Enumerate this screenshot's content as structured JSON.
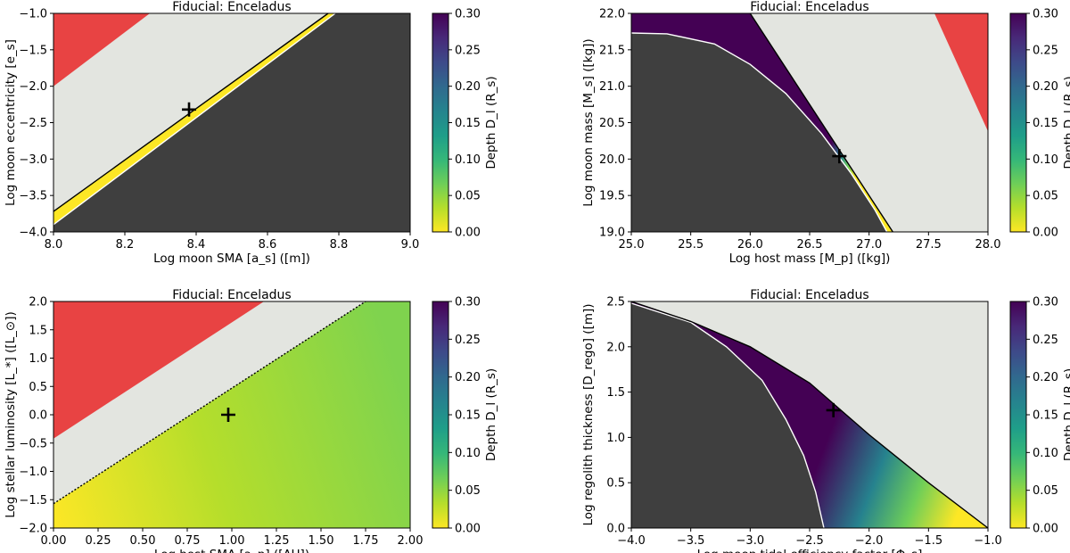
{
  "colors": {
    "dark": "#3f3f3f",
    "light": "#e3e5e0",
    "red": "#e84343",
    "viridis": [
      "#fde725",
      "#b5de2b",
      "#6ece58",
      "#35b779",
      "#1f9e89",
      "#26828e",
      "#31688e",
      "#3e4989",
      "#482878",
      "#440154"
    ]
  },
  "colorbar": {
    "label": "Depth D_l (R_s)",
    "ticks": [
      "0.00",
      "0.05",
      "0.10",
      "0.15",
      "0.20",
      "0.25",
      "0.30"
    ],
    "range": [
      0,
      0.3
    ]
  },
  "chart_data": [
    {
      "type": "heatmap",
      "title": "Fiducial: Enceladus",
      "xlabel": "Log moon SMA [a_s] ([m])",
      "ylabel": "Log moon eccentricity [e_s]",
      "xlim": [
        8.0,
        9.0
      ],
      "ylim": [
        -4.0,
        -1.0
      ],
      "xticks": [
        "8.0",
        "8.2",
        "8.4",
        "8.6",
        "8.8",
        "9.0"
      ],
      "yticks": [
        "-4.0",
        "-3.5",
        "-3.0",
        "-2.5",
        "-2.0",
        "-1.5",
        "-1.0"
      ],
      "marker": [
        8.38,
        -2.32
      ],
      "boundary_upper": [
        [
          8.0,
          -3.72
        ],
        [
          8.77,
          -1.0
        ]
      ],
      "boundary_lower": [
        [
          8.0,
          -3.9
        ],
        [
          8.79,
          -1.0
        ]
      ],
      "red_region": [
        [
          8.0,
          -2.0
        ],
        [
          8.0,
          -1.0
        ],
        [
          8.27,
          -1.0
        ]
      ]
    },
    {
      "type": "heatmap",
      "title": "Fiducial: Enceladus",
      "xlabel": "Log host mass [M_p] ([kg])",
      "ylabel": "Log moon mass [M_s] ([kg])",
      "xlim": [
        25.0,
        28.0
      ],
      "ylim": [
        19.0,
        22.0
      ],
      "xticks": [
        "25.0",
        "25.5",
        "26.0",
        "26.5",
        "27.0",
        "27.5",
        "28.0"
      ],
      "yticks": [
        "19.0",
        "19.5",
        "20.0",
        "20.5",
        "21.0",
        "21.5",
        "22.0"
      ],
      "marker": [
        26.75,
        20.04
      ],
      "boundary_upper": [
        [
          26.0,
          22.0
        ],
        [
          27.2,
          19.0
        ]
      ],
      "boundary_lower": [
        [
          25.0,
          21.73
        ],
        [
          25.3,
          21.72
        ],
        [
          25.7,
          21.58
        ],
        [
          26.0,
          21.3
        ],
        [
          26.3,
          20.9
        ],
        [
          26.6,
          20.35
        ],
        [
          26.85,
          19.8
        ],
        [
          27.05,
          19.3
        ],
        [
          27.15,
          19.0
        ]
      ],
      "red_region": [
        [
          27.55,
          22.0
        ],
        [
          28.0,
          22.0
        ],
        [
          28.0,
          20.38
        ]
      ]
    },
    {
      "type": "heatmap",
      "title": "Fiducial: Enceladus",
      "xlabel": "Log host SMA [a_p] ([AU])",
      "ylabel": "Log stellar luminosity [L_*] ([L_⊙])",
      "xlim": [
        0.0,
        2.0
      ],
      "ylim": [
        -2.0,
        2.0
      ],
      "xticks": [
        "0.00",
        "0.25",
        "0.50",
        "0.75",
        "1.00",
        "1.25",
        "1.50",
        "1.75",
        "2.00"
      ],
      "yticks": [
        "-2.0",
        "-1.5",
        "-1.0",
        "-0.5",
        "0.0",
        "0.5",
        "1.0",
        "1.5",
        "2.0"
      ],
      "marker": [
        0.98,
        0.0
      ],
      "boundary_upper": [
        [
          0.0,
          -1.57
        ],
        [
          1.75,
          2.0
        ]
      ],
      "red_region": [
        [
          0.0,
          -0.42
        ],
        [
          0.0,
          2.0
        ],
        [
          1.18,
          2.0
        ]
      ]
    },
    {
      "type": "heatmap",
      "title": "Fiducial: Enceladus",
      "xlabel": "Log moon tidal efficiency factor [Φ_s]",
      "ylabel": "Log regolith thickness [D_rego] ([m])",
      "xlim": [
        -4.0,
        -1.0
      ],
      "ylim": [
        0.0,
        2.5
      ],
      "xticks": [
        "-4.0",
        "-3.5",
        "-3.0",
        "-2.5",
        "-2.0",
        "-1.5",
        "-1.0"
      ],
      "yticks": [
        "0.0",
        "0.5",
        "1.0",
        "1.5",
        "2.0",
        "2.5"
      ],
      "marker": [
        -2.3,
        1.3
      ],
      "boundary_upper": [
        [
          -4.0,
          2.5
        ],
        [
          -3.5,
          2.28
        ],
        [
          -3.0,
          2.0
        ],
        [
          -2.5,
          1.6
        ],
        [
          -2.0,
          1.03
        ],
        [
          -1.5,
          0.5
        ],
        [
          -1.0,
          0.0
        ]
      ],
      "boundary_lower": [
        [
          -4.0,
          2.48
        ],
        [
          -3.5,
          2.27
        ],
        [
          -3.2,
          2.0
        ],
        [
          -2.9,
          1.63
        ],
        [
          -2.7,
          1.2
        ],
        [
          -2.55,
          0.8
        ],
        [
          -2.45,
          0.4
        ],
        [
          -2.38,
          0.0
        ]
      ]
    }
  ]
}
